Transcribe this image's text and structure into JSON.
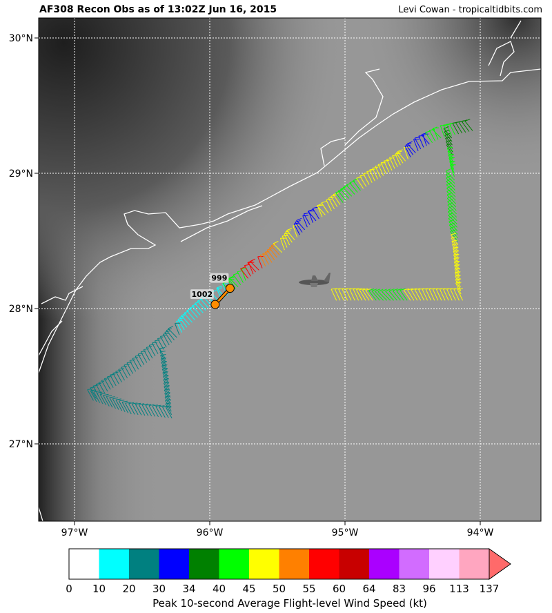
{
  "header": {
    "title": "AF308 Recon Obs as of 13:02Z Jun 16, 2015",
    "credit": "Levi Cowan - tropicaltidbits.com"
  },
  "map": {
    "extent": {
      "lon": [
        -97.26,
        -93.55
      ],
      "lat": [
        26.42,
        30.14
      ]
    },
    "lon_ticks": [
      {
        "value": -97,
        "label": "97°W"
      },
      {
        "value": -96,
        "label": "96°W"
      },
      {
        "value": -95,
        "label": "95°W"
      },
      {
        "value": -94,
        "label": "94°W"
      }
    ],
    "lat_ticks": [
      {
        "value": 30,
        "label": "30°N"
      },
      {
        "value": 29,
        "label": "29°N"
      },
      {
        "value": 28,
        "label": "28°N"
      },
      {
        "value": 27,
        "label": "27°N"
      }
    ],
    "background": "grayscale satellite imagery",
    "gridlines": true,
    "aircraft_icon": "recon-plane-icon",
    "pressure_obs": [
      {
        "lon": -95.96,
        "lat": 28.03,
        "label": "1002"
      },
      {
        "lon": -95.85,
        "lat": 28.15,
        "label": "999"
      }
    ],
    "flight_legs": [
      [
        [
          -95.93,
          28.05,
          15
        ],
        [
          -95.79,
          28.16,
          42
        ],
        [
          -95.66,
          28.27,
          57
        ],
        [
          -95.54,
          28.34,
          52
        ],
        [
          -95.41,
          28.47,
          47
        ],
        [
          -95.26,
          28.62,
          32
        ],
        [
          -95.1,
          28.72,
          47
        ],
        [
          -94.95,
          28.83,
          42
        ],
        [
          -94.8,
          28.93,
          47
        ],
        [
          -94.59,
          29.06,
          47
        ],
        [
          -94.44,
          29.18,
          32
        ],
        [
          -94.29,
          29.26,
          42
        ],
        [
          -94.03,
          29.32,
          36
        ]
      ],
      [
        [
          -94.21,
          29.26,
          36
        ],
        [
          -94.19,
          28.95,
          42
        ],
        [
          -94.17,
          28.6,
          42
        ],
        [
          -94.16,
          28.34,
          47
        ],
        [
          -94.14,
          28.08,
          47
        ]
      ],
      [
        [
          -94.13,
          28.06,
          47
        ],
        [
          -94.39,
          28.06,
          47
        ],
        [
          -94.69,
          28.06,
          42
        ],
        [
          -94.9,
          28.06,
          47
        ],
        [
          -95.09,
          28.06,
          47
        ]
      ],
      [
        [
          -95.97,
          28.04,
          15
        ],
        [
          -96.15,
          27.88,
          15
        ],
        [
          -96.3,
          27.73,
          25
        ],
        [
          -96.63,
          27.47,
          25
        ],
        [
          -96.86,
          27.32,
          25
        ],
        [
          -96.58,
          27.22,
          25
        ],
        [
          -96.28,
          27.19,
          25
        ],
        [
          -96.3,
          27.42,
          25
        ],
        [
          -96.33,
          27.65,
          25
        ]
      ]
    ]
  },
  "colorbar": {
    "label": "Peak 10-second Average Flight-level Wind Speed (kt)",
    "bounds": [
      "0",
      "10",
      "20",
      "30",
      "34",
      "40",
      "45",
      "50",
      "55",
      "60",
      "64",
      "83",
      "96",
      "113",
      "137"
    ],
    "colors": [
      "#ffffff",
      "#00ffff",
      "#008080",
      "#0000ff",
      "#008000",
      "#00ff00",
      "#ffff00",
      "#ff8000",
      "#ff0000",
      "#c80000",
      "#aa00ff",
      "#d26cff",
      "#ffd0ff",
      "#ffa6c0"
    ],
    "extend_color": "#ff6a6a"
  }
}
